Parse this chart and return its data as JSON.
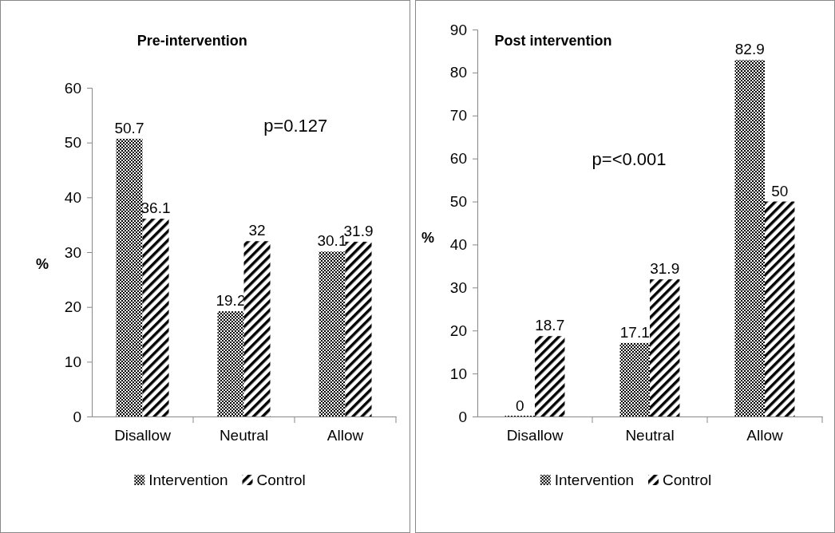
{
  "chart_data": [
    {
      "type": "bar",
      "title": "Pre-intervention",
      "ylabel": "%",
      "categories": [
        "Disallow",
        "Neutral",
        "Allow"
      ],
      "series": [
        {
          "name": "Intervention",
          "color": "#000000",
          "values": [
            50.7,
            19.2,
            30.1
          ]
        },
        {
          "name": "Control",
          "color": "#000000",
          "values": [
            36.1,
            32,
            31.9
          ]
        }
      ],
      "ylim": [
        0,
        60
      ],
      "yticks": [
        0,
        10,
        20,
        30,
        40,
        50,
        60
      ],
      "data_labels": true,
      "legend": "bottom",
      "annotations": [
        "p=0.127"
      ]
    },
    {
      "type": "bar",
      "title": "Post intervention",
      "ylabel": "%",
      "categories": [
        "Disallow",
        "Neutral",
        "Allow"
      ],
      "series": [
        {
          "name": "Intervention",
          "color": "#000000",
          "values": [
            0,
            17.1,
            82.9
          ]
        },
        {
          "name": "Control",
          "color": "#000000",
          "values": [
            18.7,
            31.9,
            50
          ]
        }
      ],
      "ylim": [
        0,
        90
      ],
      "yticks": [
        0,
        10,
        20,
        30,
        40,
        50,
        60,
        70,
        80,
        90
      ],
      "data_labels": true,
      "legend": "bottom",
      "annotations": [
        "p=<0.001"
      ]
    }
  ]
}
